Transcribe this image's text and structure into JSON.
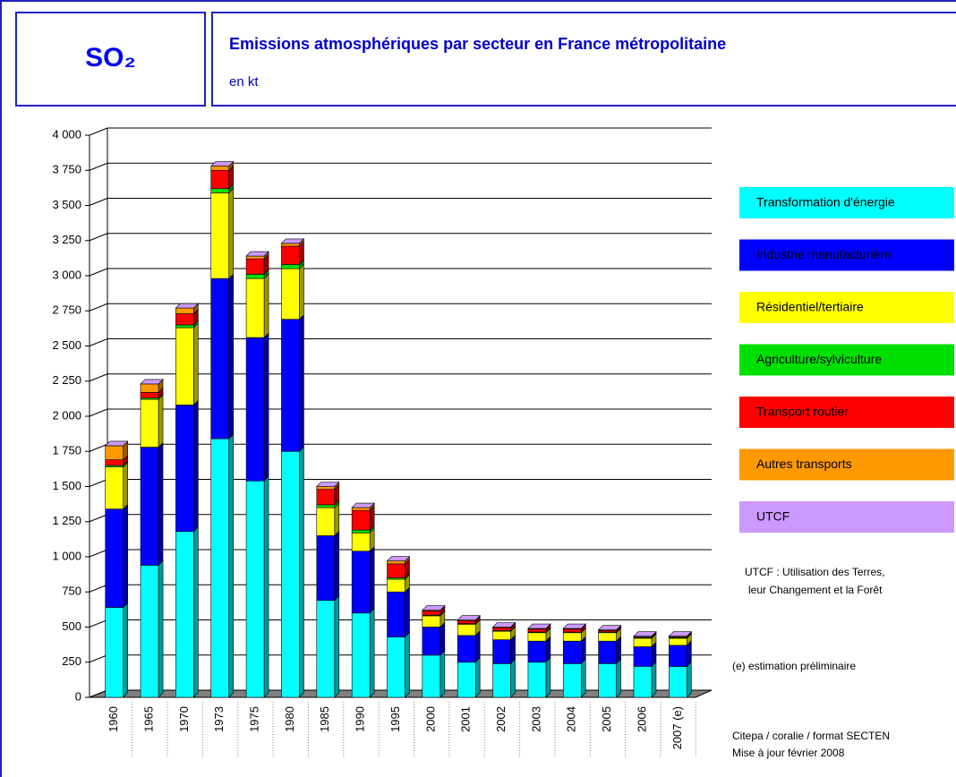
{
  "header": {
    "formula": "SO₂",
    "title": "Emissions atmosphériques par secteur en France métropolitaine",
    "subtitle": "en kt"
  },
  "chart_data": {
    "type": "stacked_bar",
    "categories": [
      "1960",
      "1965",
      "1970",
      "1973",
      "1975",
      "1980",
      "1985",
      "1990",
      "1995",
      "2000",
      "2001",
      "2002",
      "2003",
      "2004",
      "2005",
      "2006",
      "2007 (e)"
    ],
    "series": [
      {
        "name": "Transformation d'énergie",
        "color": "#00ffff",
        "values": [
          640,
          940,
          1180,
          1840,
          1540,
          1750,
          690,
          600,
          430,
          300,
          250,
          240,
          250,
          240,
          240,
          220,
          220
        ]
      },
      {
        "name": "Industrie manufacturière",
        "color": "#0000ff",
        "values": [
          700,
          840,
          900,
          1140,
          1020,
          940,
          460,
          440,
          320,
          200,
          190,
          170,
          150,
          160,
          160,
          140,
          150
        ]
      },
      {
        "name": "Résidentiel/tertiaire",
        "color": "#ffff00",
        "values": [
          300,
          340,
          550,
          610,
          420,
          360,
          200,
          130,
          90,
          80,
          80,
          60,
          60,
          60,
          60,
          60,
          50
        ]
      },
      {
        "name": "Agriculture/sylviculture",
        "color": "#00e000",
        "values": [
          10,
          10,
          20,
          30,
          30,
          30,
          20,
          20,
          10,
          5,
          5,
          5,
          5,
          5,
          5,
          5,
          5
        ]
      },
      {
        "name": "Transport routier",
        "color": "#ff0000",
        "values": [
          40,
          40,
          80,
          130,
          110,
          130,
          110,
          140,
          100,
          30,
          20,
          20,
          20,
          20,
          10,
          5,
          5
        ]
      },
      {
        "name": "Autres transports",
        "color": "#ff9900",
        "values": [
          100,
          60,
          40,
          30,
          20,
          20,
          20,
          20,
          20,
          5,
          5,
          5,
          5,
          5,
          5,
          5,
          5
        ]
      },
      {
        "name": "UTCF",
        "color": "#cc99ff",
        "values": [
          0,
          0,
          0,
          0,
          0,
          0,
          0,
          0,
          0,
          0,
          0,
          0,
          0,
          0,
          0,
          0,
          0
        ]
      }
    ],
    "ylim": [
      0,
      4000
    ],
    "yticks": [
      0,
      250,
      500,
      750,
      {
        "value": 1000,
        "label": "1 000"
      },
      {
        "value": 1250,
        "label": "1 250"
      },
      {
        "value": 1500,
        "label": "1 500"
      },
      {
        "value": 1750,
        "label": "1 750"
      },
      {
        "value": 2000,
        "label": "2 000"
      },
      {
        "value": 2250,
        "label": "2 250"
      },
      {
        "value": 2500,
        "label": "2 500"
      },
      {
        "value": 2750,
        "label": "2 750"
      },
      {
        "value": 3000,
        "label": "3 000"
      },
      {
        "value": 3250,
        "label": "3 250"
      },
      {
        "value": 3500,
        "label": "3 500"
      },
      {
        "value": 3750,
        "label": "3 750"
      },
      {
        "value": 4000,
        "label": "4 000"
      }
    ],
    "grid": true,
    "notes": [
      "UTCF : Utilisation des Terres,",
      "leur Changement et la Forêt",
      "(e) estimation préliminaire",
      "Citepa / coralie / format SECTEN",
      "Mise à jour février 2008"
    ]
  }
}
